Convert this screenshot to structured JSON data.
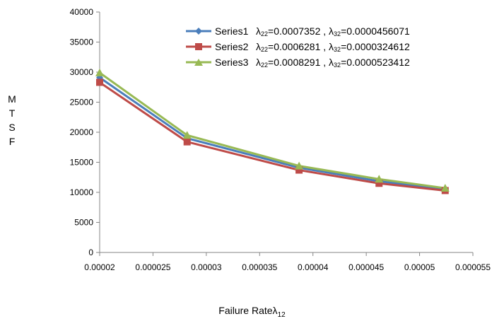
{
  "chart_data": {
    "type": "line",
    "ylabel_chars": [
      "M",
      "T",
      "S",
      "F"
    ],
    "xlabel_main": "Failure Rateλ",
    "xlabel_sub": "12",
    "xlim": [
      2e-05,
      5.5e-05
    ],
    "ylim": [
      0,
      40000
    ],
    "xticks": [
      "0.00002",
      "0.000025",
      "0.00003",
      "0.000035",
      "0.00004",
      "0.000045",
      "0.00005",
      "0.000055"
    ],
    "yticks": [
      "0",
      "5000",
      "10000",
      "15000",
      "20000",
      "25000",
      "30000",
      "35000",
      "40000"
    ],
    "grid": false,
    "legend_position": "top-right",
    "x": [
      2e-05,
      2.82e-05,
      3.87e-05,
      4.62e-05,
      5.24e-05
    ],
    "series": [
      {
        "name": "Series1",
        "color": "#4a7ebb",
        "marker": "diamond",
        "eq": {
          "a": "λ",
          "a_sub": "22",
          "a_val": "=0.0007352 , ",
          "b": "λ",
          "b_sub": "32",
          "b_val": "=0.0000456071"
        },
        "values": [
          29100,
          19000,
          14100,
          11850,
          10500
        ]
      },
      {
        "name": "Series2",
        "color": "#be4b48",
        "marker": "square",
        "eq": {
          "a": "λ",
          "a_sub": "22",
          "a_val": "=0.0006281 , ",
          "b": "λ",
          "b_sub": "32",
          "b_val": "=0.0000324612"
        },
        "values": [
          28300,
          18400,
          13700,
          11500,
          10300
        ]
      },
      {
        "name": "Series3",
        "color": "#98b954",
        "marker": "triangle",
        "eq": {
          "a": "λ",
          "a_sub": "22",
          "a_val": "=0.0008291 , ",
          "b": "λ",
          "b_sub": "32",
          "b_val": "=0.0000523412"
        },
        "values": [
          29900,
          19500,
          14400,
          12200,
          10700
        ]
      }
    ]
  }
}
